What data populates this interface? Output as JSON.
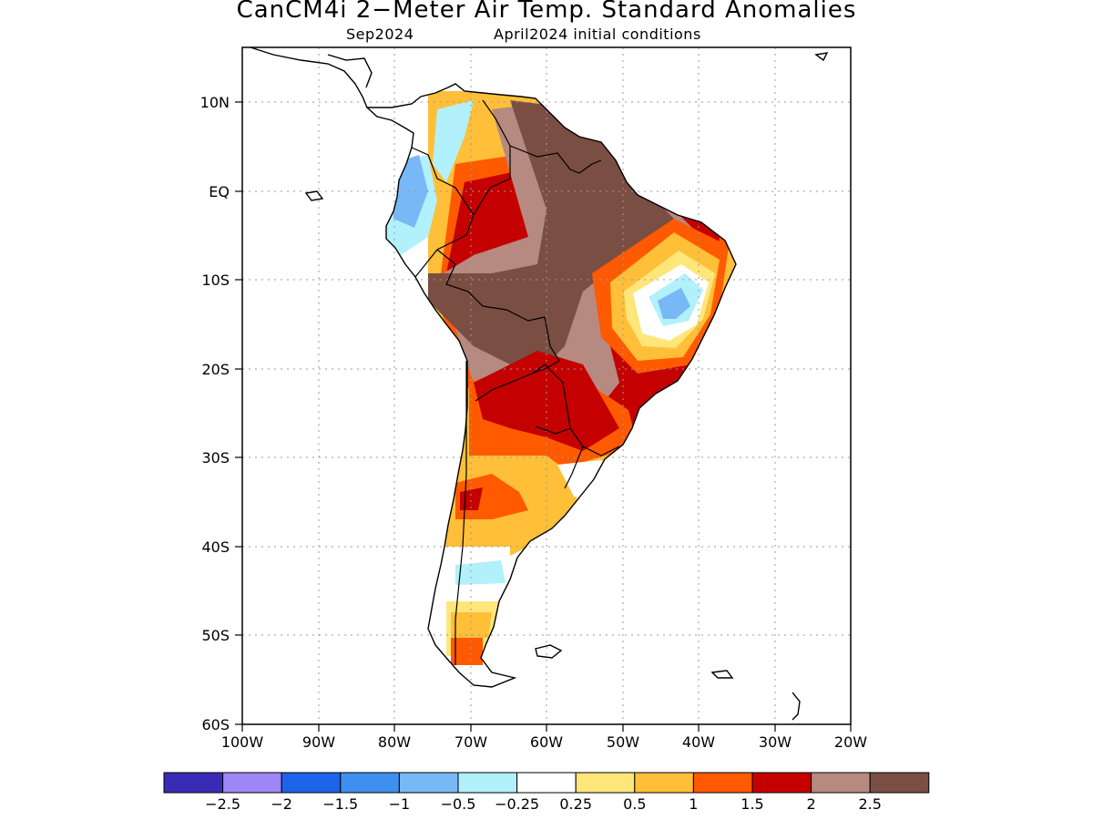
{
  "map": {
    "title": "CanCM4i 2−Meter Air Temp. Standard Anomalies",
    "target_month": "Sep2024",
    "initial_conditions": "April2024 initial conditions",
    "lat_labels": [
      "10N",
      "EQ",
      "10S",
      "20S",
      "30S",
      "40S",
      "50S",
      "60S"
    ],
    "lon_labels": [
      "100W",
      "90W",
      "80W",
      "70W",
      "60W",
      "50W",
      "40W",
      "30W",
      "20W"
    ],
    "region": "South America"
  },
  "legend": {
    "colors": [
      "#3a2bb7",
      "#9d86f5",
      "#1e64e8",
      "#3f8ff0",
      "#78b8f6",
      "#b2f1fb",
      "#ffffff",
      "#ffe67a",
      "#ffbf38",
      "#ff5a00",
      "#c40000",
      "#b68a80",
      "#7b4e43"
    ],
    "labels": [
      "−2.5",
      "−2",
      "−1.5",
      "−1",
      "−0.5",
      "−0.25",
      "0.25",
      "0.5",
      "1",
      "1.5",
      "2",
      "2.5"
    ]
  }
}
